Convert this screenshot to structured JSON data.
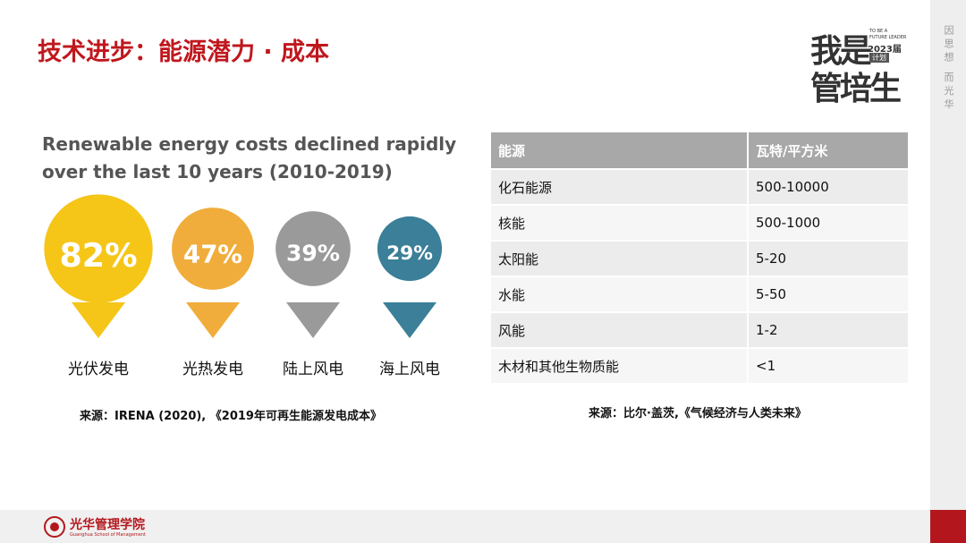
{
  "title": "技术进步：能源潜力 · 成本",
  "logo": {
    "main_top": "我是",
    "main_bottom": "管培生",
    "tag_1": "TO BE A",
    "tag_2": "FUTURE LEADER",
    "tag_3": "2023届",
    "tag_4": "计划"
  },
  "side_text": "因思想 而光华",
  "infographic": {
    "title_lines": [
      "Renewable energy costs declined rapidly",
      "over the last 10 years (2010-2019)"
    ],
    "items": [
      {
        "name": "光伏发电",
        "value": 82,
        "label": "82%",
        "color": "#f5c518"
      },
      {
        "name": "光热发电",
        "value": 47,
        "label": "47%",
        "color": "#f0ad3b"
      },
      {
        "name": "陆上风电",
        "value": 39,
        "label": "39%",
        "color": "#9a9a9a"
      },
      {
        "name": "海上风电",
        "value": 29,
        "label": "29%",
        "color": "#3b7f98"
      }
    ],
    "source": "来源：IRENA (2020), 《2019年可再生能源发电成本》"
  },
  "table": {
    "header": [
      "能源",
      "瓦特/平方米"
    ],
    "rows": [
      [
        "化石能源",
        "500-10000"
      ],
      [
        "核能",
        "500-1000"
      ],
      [
        "太阳能",
        "5-20"
      ],
      [
        "水能",
        "5-50"
      ],
      [
        "风能",
        "1-2"
      ],
      [
        "木材和其他生物质能",
        "<1"
      ]
    ],
    "source": "来源：比尔·盖茨,《气候经济与人类未来》"
  },
  "footer": {
    "name": "光华管理学院",
    "english": "Guanghua School of Management"
  }
}
